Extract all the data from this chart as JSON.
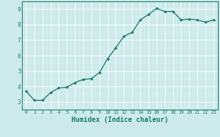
{
  "x": [
    0,
    1,
    2,
    3,
    4,
    5,
    6,
    7,
    8,
    9,
    10,
    11,
    12,
    13,
    14,
    15,
    16,
    17,
    18,
    19,
    20,
    21,
    22,
    23
  ],
  "y": [
    3.7,
    3.1,
    3.1,
    3.6,
    3.9,
    3.95,
    4.25,
    4.45,
    4.5,
    4.9,
    5.8,
    6.5,
    7.25,
    7.5,
    8.3,
    8.65,
    9.05,
    8.85,
    8.85,
    8.3,
    8.35,
    8.3,
    8.15,
    8.3
  ],
  "line_color": "#1a7a6a",
  "marker": "D",
  "marker_size": 2.0,
  "linewidth": 1.0,
  "xlabel": "Humidex (Indice chaleur)",
  "xlabel_fontsize": 7,
  "xlabel_color": "#1a7a6a",
  "bg_color": "#cceaea",
  "grid_major_color": "#ffffff",
  "grid_minor_color": "#e8f8f8",
  "tick_color": "#1a7a6a",
  "ylim": [
    2.5,
    9.5
  ],
  "xlim": [
    -0.5,
    23.5
  ],
  "yticks": [
    3,
    4,
    5,
    6,
    7,
    8,
    9
  ],
  "xticks": [
    0,
    1,
    2,
    3,
    4,
    5,
    6,
    7,
    8,
    9,
    10,
    11,
    12,
    13,
    14,
    15,
    16,
    17,
    18,
    19,
    20,
    21,
    22,
    23
  ]
}
